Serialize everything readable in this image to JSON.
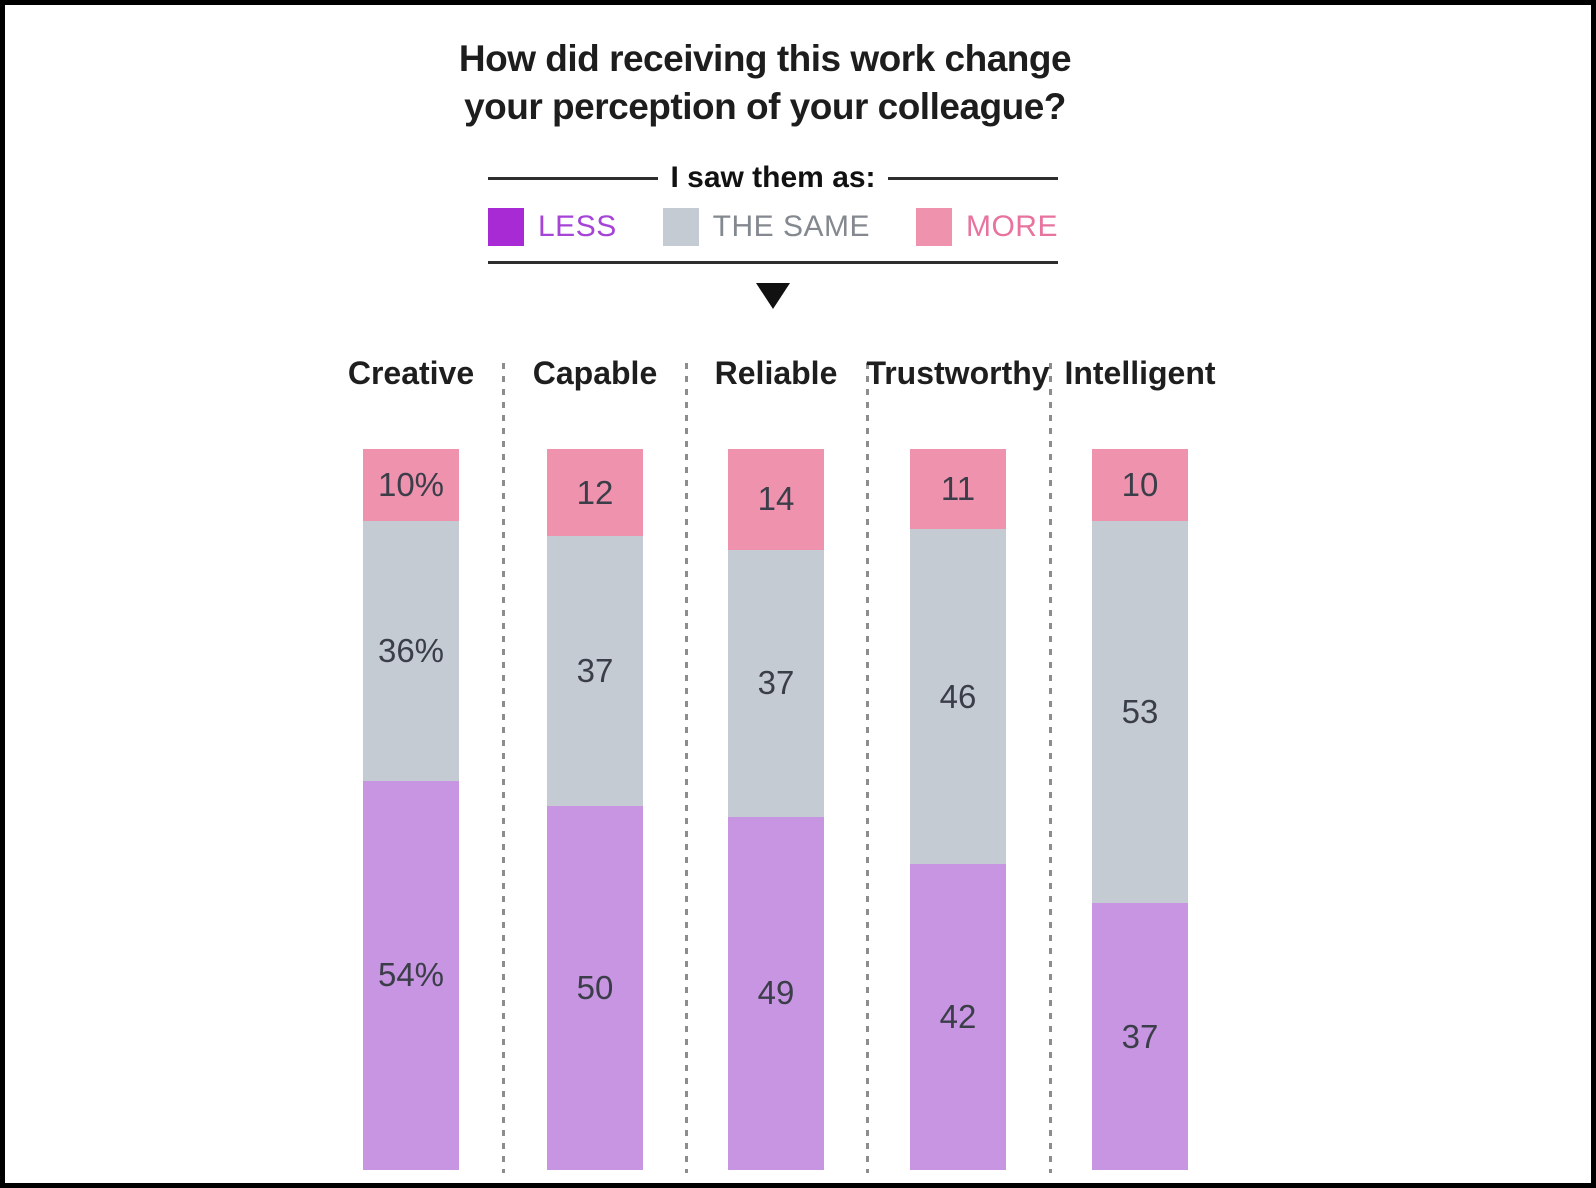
{
  "title": {
    "line1": "How did receiving this work change",
    "line2": "your perception of your colleague?"
  },
  "legend": {
    "heading": "I saw them as:",
    "items": [
      {
        "id": "less",
        "label": "LESS",
        "swatch_color": "#a82ad4",
        "label_color": "#a544d6"
      },
      {
        "id": "same",
        "label": "THE SAME",
        "swatch_color": "#c5cbd2",
        "label_color": "#84898f"
      },
      {
        "id": "more",
        "label": "MORE",
        "swatch_color": "#ee92ae",
        "label_color": "#e7739e"
      }
    ]
  },
  "chart_data": {
    "type": "bar",
    "stacked": true,
    "orientation": "vertical",
    "title": "How did receiving this work change your perception of your colleague?",
    "categories": [
      "Creative",
      "Capable",
      "Reliable",
      "Trustworthy",
      "Intelligent"
    ],
    "segment_order_top_to_bottom": [
      "MORE",
      "THE SAME",
      "LESS"
    ],
    "series": [
      {
        "name": "MORE",
        "color": "#ee92ae",
        "values": [
          10,
          12,
          14,
          11,
          10
        ],
        "labels": [
          "10%",
          "12",
          "14",
          "11",
          "10"
        ]
      },
      {
        "name": "THE SAME",
        "color": "#c5cbd2",
        "values": [
          36,
          37,
          37,
          46,
          53
        ],
        "labels": [
          "36%",
          "37",
          "37",
          "46",
          "53"
        ]
      },
      {
        "name": "LESS",
        "color": "#c795e1",
        "values": [
          54,
          50,
          49,
          42,
          37
        ],
        "labels": [
          "54%",
          "50",
          "49",
          "42",
          "37"
        ]
      }
    ],
    "value_label_color": "#3b3e49",
    "ylim": [
      0,
      100
    ],
    "grid": false,
    "legend_position": "top"
  }
}
